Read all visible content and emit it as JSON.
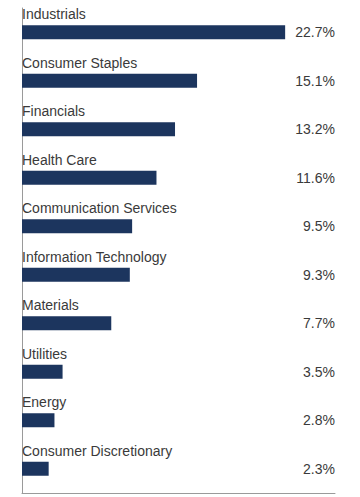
{
  "chart_data": {
    "type": "bar",
    "orientation": "horizontal",
    "categories": [
      "Industrials",
      "Consumer Staples",
      "Financials",
      "Health Care",
      "Communication Services",
      "Information Technology",
      "Materials",
      "Utilities",
      "Energy",
      "Consumer Discretionary"
    ],
    "values": [
      22.7,
      15.1,
      13.2,
      11.6,
      9.5,
      9.3,
      7.7,
      3.5,
      2.8,
      2.3
    ],
    "value_labels": [
      "22.7%",
      "15.1%",
      "13.2%",
      "11.6%",
      "9.5%",
      "9.3%",
      "7.7%",
      "3.5%",
      "2.8%",
      "2.3%"
    ],
    "color": "#1c355e",
    "data_labels": true,
    "grid": false,
    "xlim": [
      0,
      27
    ],
    "xticks": []
  }
}
